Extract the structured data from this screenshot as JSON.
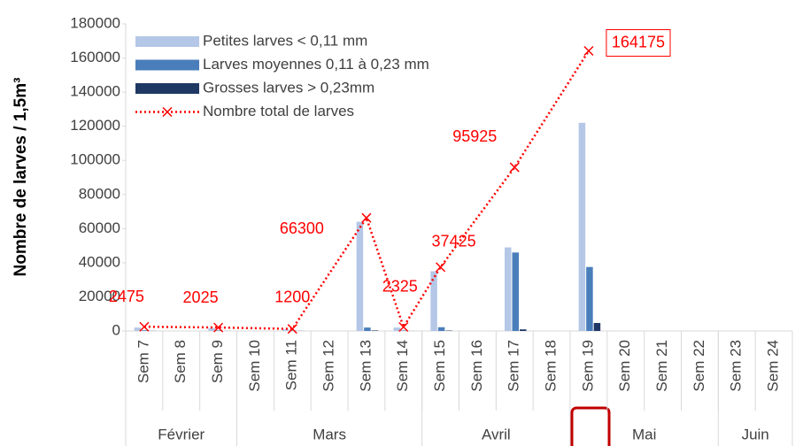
{
  "chart_data": {
    "type": "bar",
    "y_label": "Nombre de larves / 1,5m³",
    "categories": [
      "Sem 7",
      "Sem 8",
      "Sem 9",
      "Sem 10",
      "Sem 11",
      "Sem 12",
      "Sem 13",
      "Sem 14",
      "Sem 15",
      "Sem 16",
      "Sem 17",
      "Sem 18",
      "Sem 19",
      "Sem 20",
      "Sem 21",
      "Sem 22",
      "Sem 23",
      "Sem 24"
    ],
    "groups": [
      {
        "name": "Février",
        "span": 3
      },
      {
        "name": "Mars",
        "span": 5
      },
      {
        "name": "Avril",
        "span": 4
      },
      {
        "name": "Mai",
        "span": 4
      },
      {
        "name": "Juin",
        "span": 2
      }
    ],
    "series": [
      {
        "name": "Petites larves < 0,11 mm",
        "color": "#b4c7e7",
        "values": [
          2000,
          null,
          1700,
          null,
          900,
          null,
          64000,
          2000,
          35000,
          null,
          49000,
          null,
          122000,
          null,
          null,
          null,
          null,
          null
        ]
      },
      {
        "name": "Larves moyennes 0,11 à 0,23 mm",
        "color": "#4a7ebb",
        "values": [
          400,
          null,
          300,
          null,
          250,
          null,
          2000,
          300,
          2200,
          null,
          46000,
          null,
          37500,
          null,
          null,
          null,
          null,
          null
        ]
      },
      {
        "name": "Grosses larves > 0,23mm",
        "color": "#203864",
        "values": [
          75,
          null,
          25,
          null,
          50,
          null,
          300,
          25,
          225,
          null,
          925,
          null,
          4675,
          null,
          null,
          null,
          null,
          null
        ]
      },
      {
        "name": "Nombre total de larves",
        "type": "line",
        "color": "#ff0000",
        "connect_gaps": true,
        "values": [
          2475,
          null,
          2025,
          null,
          1200,
          null,
          66300,
          2325,
          37425,
          null,
          95925,
          null,
          164175,
          null,
          null,
          null,
          null,
          null
        ]
      }
    ],
    "ylim": [
      0,
      180000
    ],
    "yticks": [
      0,
      20000,
      40000,
      60000,
      80000,
      100000,
      120000,
      140000,
      160000,
      180000
    ],
    "grid": false,
    "legend": "top-left"
  }
}
